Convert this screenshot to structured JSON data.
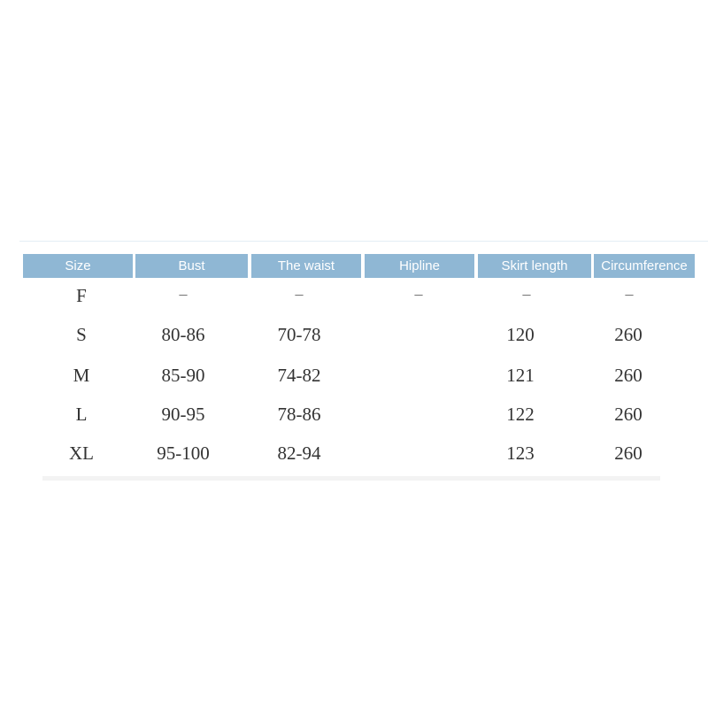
{
  "table": {
    "headers": [
      "Size",
      "Bust",
      "The waist",
      "Hipline",
      "Skirt length",
      "Circumference"
    ],
    "header_color": "#8fb7d4",
    "rows": [
      [
        "F",
        "–",
        "–",
        "–",
        "–",
        "–"
      ],
      [
        "S",
        "80-86",
        "70-78",
        "",
        "120",
        "260"
      ],
      [
        "M",
        "85-90",
        "74-82",
        "",
        "121",
        "260"
      ],
      [
        "L",
        "90-95",
        "78-86",
        "",
        "122",
        "260"
      ],
      [
        "XL",
        "95-100",
        "82-94",
        "",
        "123",
        "260"
      ]
    ]
  }
}
